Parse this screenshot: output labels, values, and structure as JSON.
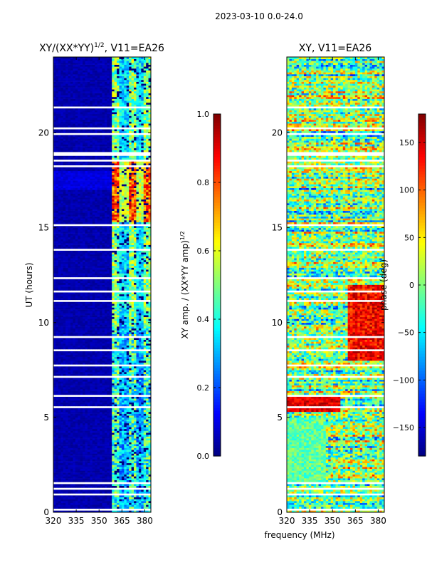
{
  "suptitle": "2023-03-10 0.0-24.0",
  "colors": {
    "jet": [
      "#00007f",
      "#0000ff",
      "#007fff",
      "#00ffff",
      "#7fff7f",
      "#ffff00",
      "#ff7f00",
      "#ff0000",
      "#7f0000"
    ]
  },
  "chart_data": [
    {
      "type": "heatmap",
      "title_main": "XY/(XX*YY)",
      "title_sup": "1/2",
      "title_rest": ", V11=EA26",
      "xlabel": "frequency (MHz)",
      "ylabel": "UT (hours)",
      "xlim": [
        320,
        384
      ],
      "ylim": [
        0,
        24
      ],
      "xticks": [
        "320",
        "335",
        "350",
        "365",
        "380"
      ],
      "xtick_values": [
        320,
        335,
        350,
        365,
        380
      ],
      "yticks": [
        "0",
        "5",
        "10",
        "15",
        "20"
      ],
      "ytick_values": [
        0,
        5,
        10,
        15,
        20
      ],
      "colorbar": {
        "label_main": "XY amp. / (XX*YY amp)",
        "label_sup": "1/2",
        "ticks": [
          "0.0",
          "0.2",
          "0.4",
          "0.6",
          "0.8",
          "1.0"
        ],
        "tick_values": [
          0.0,
          0.2,
          0.4,
          0.6,
          0.8,
          1.0
        ],
        "range": [
          0.0,
          1.0
        ]
      }
    },
    {
      "type": "heatmap",
      "title": "XY, V11=EA26",
      "xlim": [
        320,
        384
      ],
      "ylim": [
        0,
        24
      ],
      "xticks": [
        "320",
        "335",
        "350",
        "365",
        "380"
      ],
      "xtick_values": [
        320,
        335,
        350,
        365,
        380
      ],
      "yticks": [
        "0",
        "5",
        "10",
        "15",
        "20"
      ],
      "ytick_values": [
        0,
        5,
        10,
        15,
        20
      ],
      "colorbar": {
        "label": "phase (deg)",
        "ticks": [
          "−150",
          "−100",
          "−50",
          "0",
          "50",
          "100",
          "150"
        ],
        "tick_values": [
          -150,
          -100,
          -50,
          0,
          50,
          100,
          150
        ],
        "range": [
          -180,
          180
        ]
      }
    }
  ]
}
